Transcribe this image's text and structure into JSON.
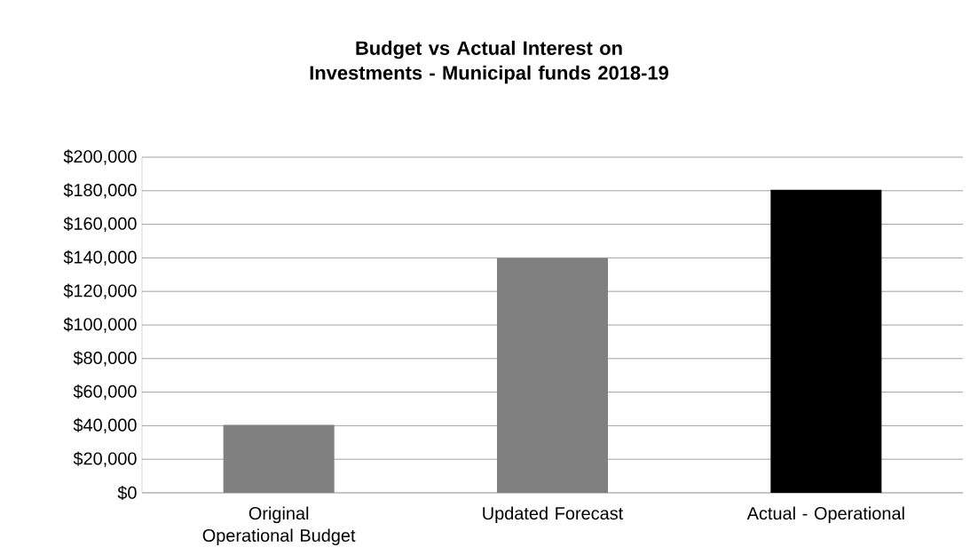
{
  "chart_data": {
    "type": "bar",
    "title": "Budget vs Actual Interest on Investments - Municipal funds 2018-19",
    "categories": [
      "Original Operational Budget",
      "Updated Forecast",
      "Actual - Operational"
    ],
    "values": [
      40500,
      140000,
      180500
    ],
    "colors": [
      "#808080",
      "#808080",
      "#000000"
    ],
    "ylim": [
      0,
      200000
    ],
    "yticks": [
      {
        "value": 0,
        "label": "$0"
      },
      {
        "value": 20000,
        "label": "$20,000"
      },
      {
        "value": 40000,
        "label": "$40,000"
      },
      {
        "value": 60000,
        "label": "$60,000"
      },
      {
        "value": 80000,
        "label": "$80,000"
      },
      {
        "value": 100000,
        "label": "$100,000"
      },
      {
        "value": 120000,
        "label": "$120,000"
      },
      {
        "value": 140000,
        "label": "$140,000"
      },
      {
        "value": 160000,
        "label": "$160,000"
      },
      {
        "value": 180000,
        "label": "$180,000"
      },
      {
        "value": 200000,
        "label": "$200,000"
      }
    ],
    "grid": "y"
  }
}
